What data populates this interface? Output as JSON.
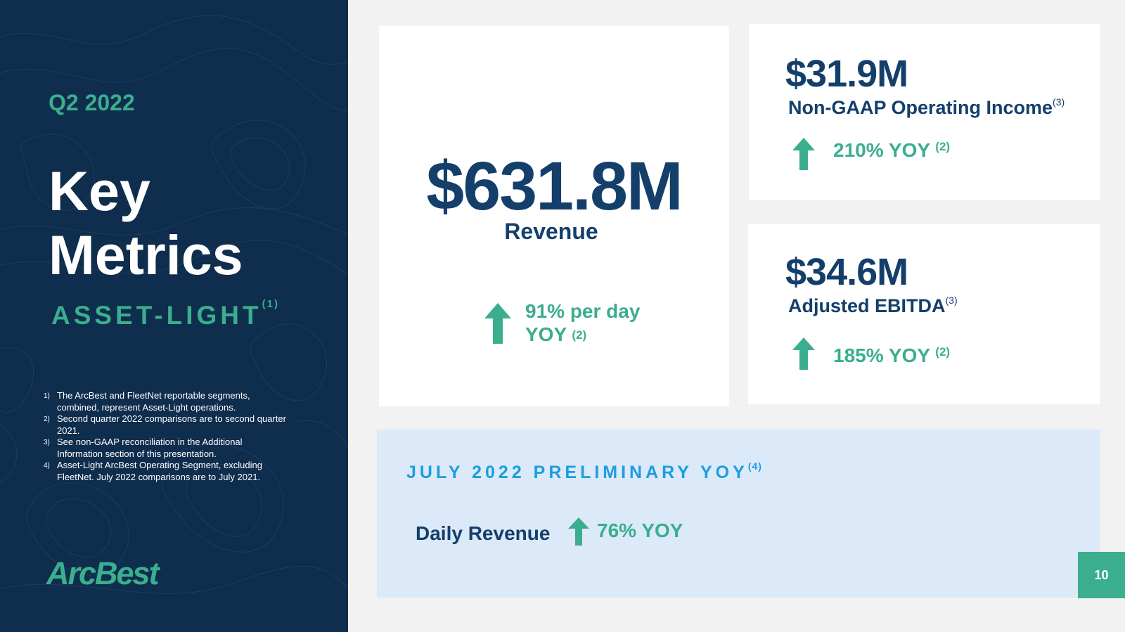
{
  "left_panel": {
    "quarter": "Q2 2022",
    "title_line1": "Key",
    "title_line2": "Metrics",
    "subtitle": "ASSET-LIGHT",
    "subtitle_ref": "(1)",
    "footnotes": [
      {
        "num": "1)",
        "text": "The ArcBest and FleetNet reportable segments, combined, represent Asset-Light operations."
      },
      {
        "num": "2)",
        "text": "Second quarter 2022 comparisons are to second quarter 2021."
      },
      {
        "num": "3)",
        "text": "See non-GAAP reconciliation in the Additional Information section of this presentation."
      },
      {
        "num": "4)",
        "text": "Asset-Light ArcBest Operating Segment, excluding FleetNet. July 2022 comparisons are to July 2021."
      }
    ],
    "logo": "ArcBest"
  },
  "revenue_card": {
    "value": "$631.8M",
    "label": "Revenue",
    "change_line1": "91% per day",
    "change_line2": "YOY",
    "change_ref": "(2)",
    "arrow_icon": "up-arrow-icon"
  },
  "operating_income_card": {
    "value": "$31.9M",
    "label": "Non-GAAP Operating Income",
    "label_ref": "(3)",
    "change": "210% YOY",
    "change_ref": "(2)",
    "arrow_icon": "up-arrow-icon"
  },
  "ebitda_card": {
    "value": "$34.6M",
    "label": "Adjusted EBITDA",
    "label_ref": "(3)",
    "change": "185% YOY",
    "change_ref": "(2)",
    "arrow_icon": "up-arrow-icon"
  },
  "july_panel": {
    "title": "JULY 2022 PRELIMINARY YOY",
    "title_ref": "(4)",
    "metric_label": "Daily Revenue",
    "metric_change": "76% YOY",
    "arrow_icon": "up-arrow-icon"
  },
  "page_number": "10",
  "colors": {
    "navy_panel": "#0f2d4d",
    "navy_text": "#143f6b",
    "teal": "#3aae8e",
    "light_blue_panel": "#dbe9f8",
    "blue_title": "#1d9de0",
    "background": "#f2f2f2"
  }
}
